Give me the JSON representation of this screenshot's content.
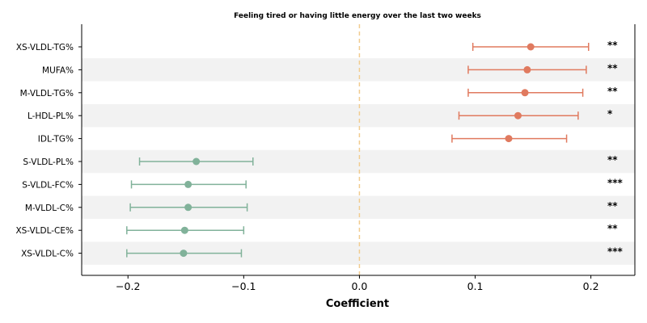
{
  "chart_data": {
    "type": "forest",
    "title": "Feeling tired or having little energy over the last two weeks",
    "xlabel": "Coefficient",
    "xlim": [
      -0.24,
      0.238
    ],
    "xticks": [
      -0.2,
      -0.1,
      0.0,
      0.1,
      0.2
    ],
    "xtick_labels": [
      "−0.2",
      "−0.1",
      "0.0",
      "0.1",
      "0.2"
    ],
    "reference_line": 0,
    "colors": {
      "positive": "#e07a5f",
      "negative": "#81b29a",
      "reference": "#f2cc8f",
      "band": "#f2f2f2"
    },
    "rows": [
      {
        "label": "XS-VLDL-TG%",
        "estimate": 0.148,
        "ci_low": 0.098,
        "ci_high": 0.198,
        "sig": "**"
      },
      {
        "label": "MUFA%",
        "estimate": 0.145,
        "ci_low": 0.094,
        "ci_high": 0.196,
        "sig": "**"
      },
      {
        "label": "M-VLDL-TG%",
        "estimate": 0.143,
        "ci_low": 0.094,
        "ci_high": 0.193,
        "sig": "**"
      },
      {
        "label": "L-HDL-PL%",
        "estimate": 0.137,
        "ci_low": 0.086,
        "ci_high": 0.189,
        "sig": "*"
      },
      {
        "label": "IDL-TG%",
        "estimate": 0.129,
        "ci_low": 0.08,
        "ci_high": 0.179,
        "sig": ""
      },
      {
        "label": "S-VLDL-PL%",
        "estimate": -0.141,
        "ci_low": -0.19,
        "ci_high": -0.092,
        "sig": "**"
      },
      {
        "label": "S-VLDL-FC%",
        "estimate": -0.148,
        "ci_low": -0.197,
        "ci_high": -0.098,
        "sig": "***"
      },
      {
        "label": "M-VLDL-C%",
        "estimate": -0.148,
        "ci_low": -0.198,
        "ci_high": -0.097,
        "sig": "**"
      },
      {
        "label": "XS-VLDL-CE%",
        "estimate": -0.151,
        "ci_low": -0.201,
        "ci_high": -0.1,
        "sig": "**"
      },
      {
        "label": "XS-VLDL-C%",
        "estimate": -0.152,
        "ci_low": -0.201,
        "ci_high": -0.102,
        "sig": "***"
      }
    ]
  }
}
